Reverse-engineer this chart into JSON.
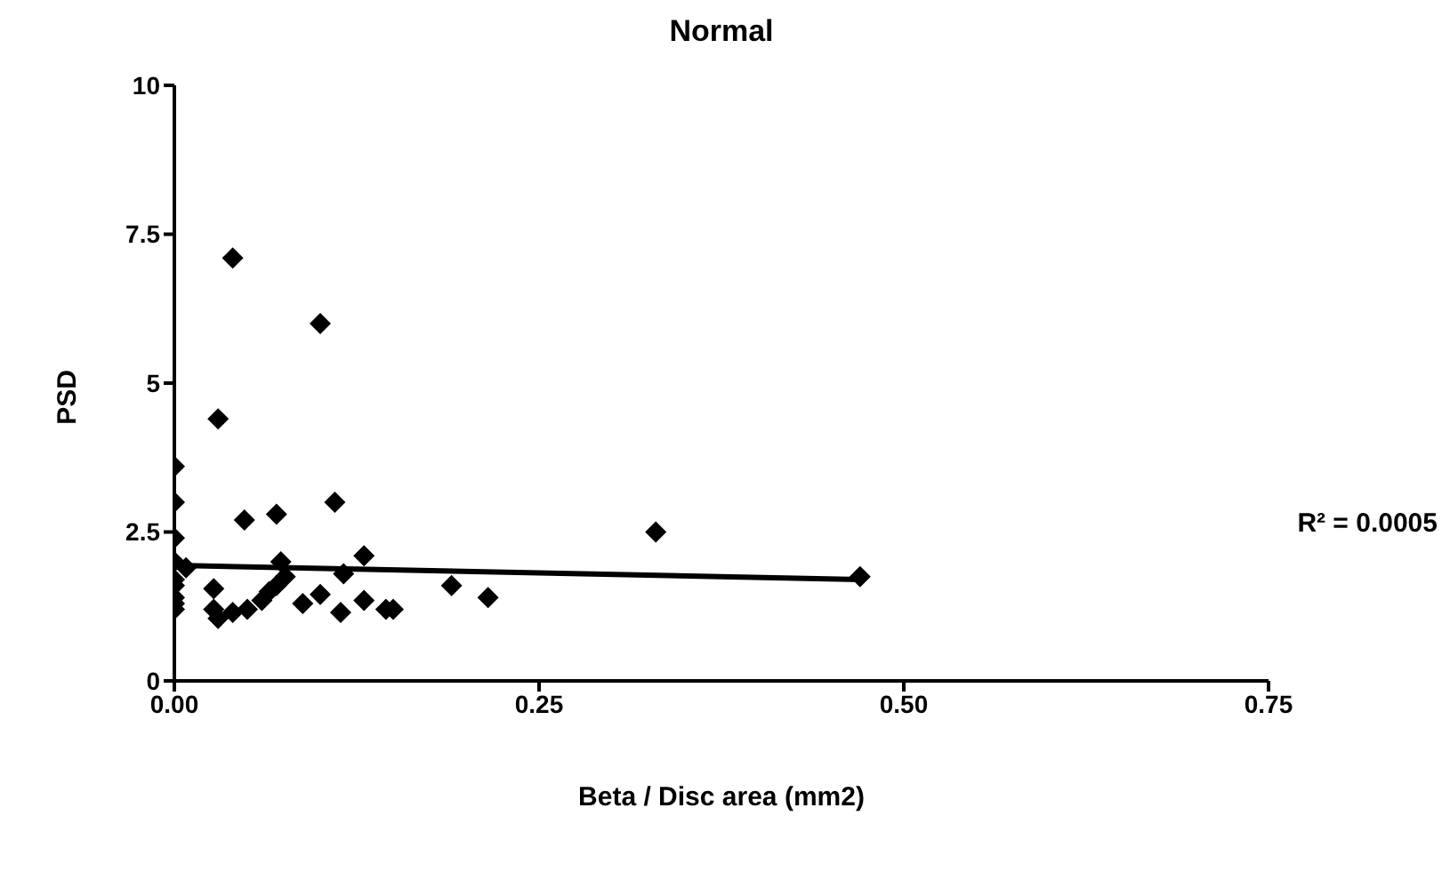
{
  "chart_data": {
    "type": "scatter",
    "title": "Normal",
    "xlabel": "Beta / Disc area (mm2)",
    "ylabel": "PSD",
    "annotations": [
      "R² = 0.0005"
    ],
    "xlim": [
      0,
      0.75
    ],
    "xticks": [
      {
        "value": 0,
        "label": "0.00"
      },
      {
        "value": 0.25,
        "label": "0.25"
      },
      {
        "value": 0.5,
        "label": "0.50"
      },
      {
        "value": 0.75,
        "label": "0.75"
      }
    ],
    "ylim": [
      0,
      10
    ],
    "yticks": [
      0,
      2.5,
      5,
      7.5,
      10
    ],
    "grid": false,
    "marker": "diamond",
    "series": [
      {
        "type": "scatter",
        "color": "#000000",
        "x": [
          0.04,
          0.1,
          0.03,
          0,
          0,
          0.048,
          0.07,
          0.11,
          0,
          0.33,
          0.47,
          0.13,
          0.19,
          0.215,
          0.073,
          0.116,
          0.13,
          0.15,
          0.145,
          0.114,
          0.076,
          0.07,
          0.027,
          0.03,
          0.027,
          0.04,
          0.05,
          0.06,
          0.065,
          0,
          0,
          0,
          0,
          0,
          0,
          0.008,
          0.088,
          0.1
        ],
        "values": [
          7.1,
          6.0,
          4.4,
          3.6,
          3.0,
          2.7,
          2.8,
          3.0,
          2.4,
          2.5,
          1.75,
          2.1,
          1.6,
          1.4,
          2.0,
          1.8,
          1.35,
          1.2,
          1.2,
          1.15,
          1.75,
          1.6,
          1.55,
          1.05,
          1.2,
          1.15,
          1.2,
          1.35,
          1.5,
          2.0,
          1.7,
          1.6,
          1.4,
          1.3,
          1.2,
          1.9,
          1.3,
          1.45
        ]
      },
      {
        "type": "line",
        "color": "#000000",
        "marker": "none",
        "x": [
          0,
          0.47
        ],
        "values": [
          1.94,
          1.7
        ]
      }
    ]
  }
}
